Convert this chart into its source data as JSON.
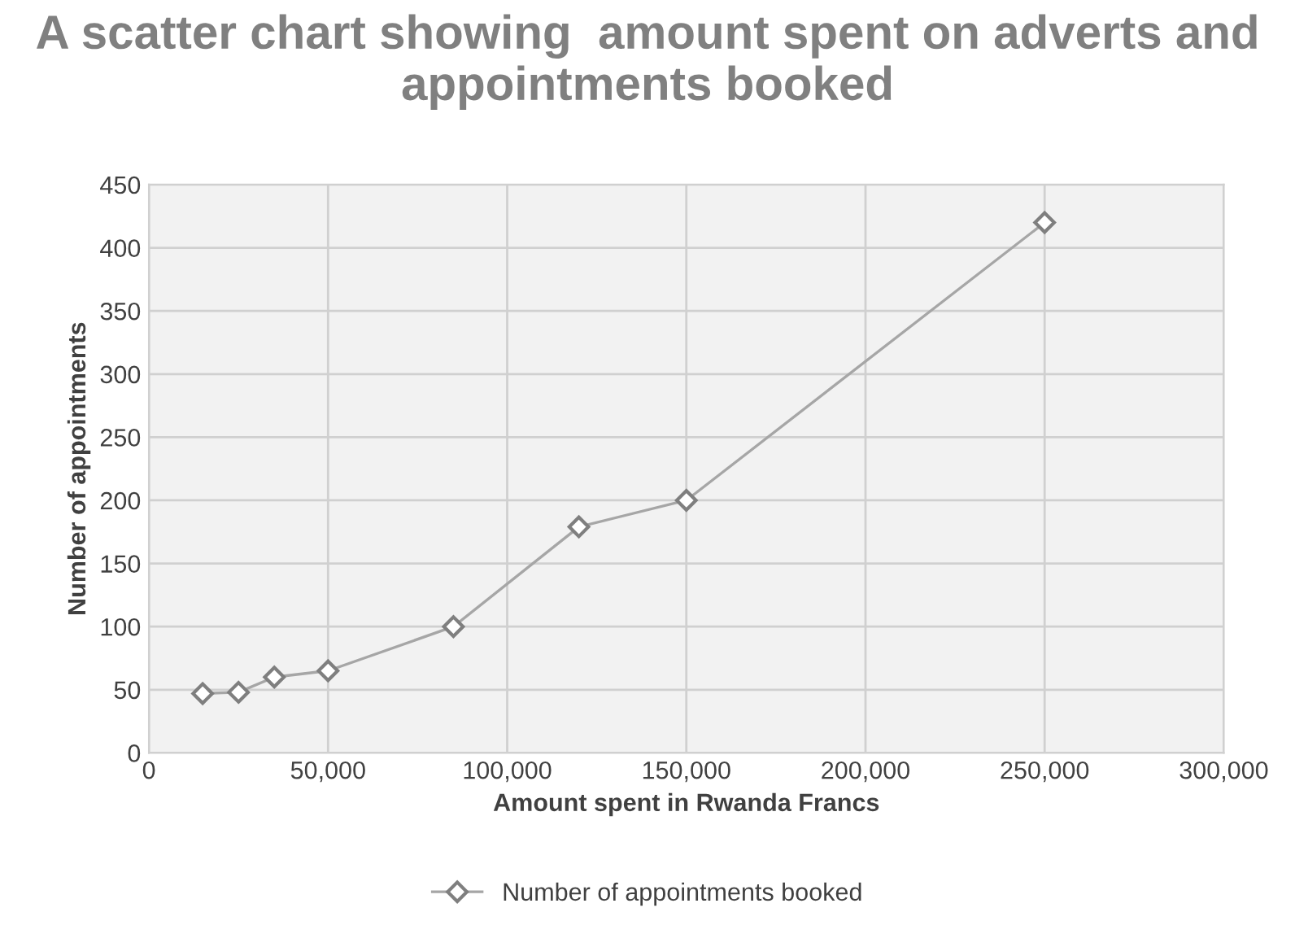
{
  "chart_data": {
    "type": "line",
    "title": "A scatter chart showing  amount spent on adverts and appointments booked",
    "xlabel": "Amount spent in Rwanda Francs",
    "ylabel": "Number of appointments",
    "x": [
      15000,
      25000,
      35000,
      50000,
      85000,
      120000,
      150000,
      250000
    ],
    "series": [
      {
        "name": "Number of appointments booked",
        "color": "#a6a6a6",
        "values": [
          47,
          48,
          60,
          65,
          100,
          179,
          200,
          420
        ]
      }
    ],
    "xlim": [
      0,
      300000
    ],
    "xticks": [
      {
        "value": 0,
        "label": "0"
      },
      {
        "value": 50000,
        "label": "50,000"
      },
      {
        "value": 100000,
        "label": "100,000"
      },
      {
        "value": 150000,
        "label": "150,000"
      },
      {
        "value": 200000,
        "label": "200,000"
      },
      {
        "value": 250000,
        "label": "250,000"
      },
      {
        "value": 300000,
        "label": "300,000"
      }
    ],
    "ylim": [
      0,
      450
    ],
    "yticks": [
      0,
      50,
      100,
      150,
      200,
      250,
      300,
      350,
      400,
      450
    ],
    "grid": true,
    "legend": "bottom",
    "marker": "diamond",
    "line_style": "solid"
  }
}
